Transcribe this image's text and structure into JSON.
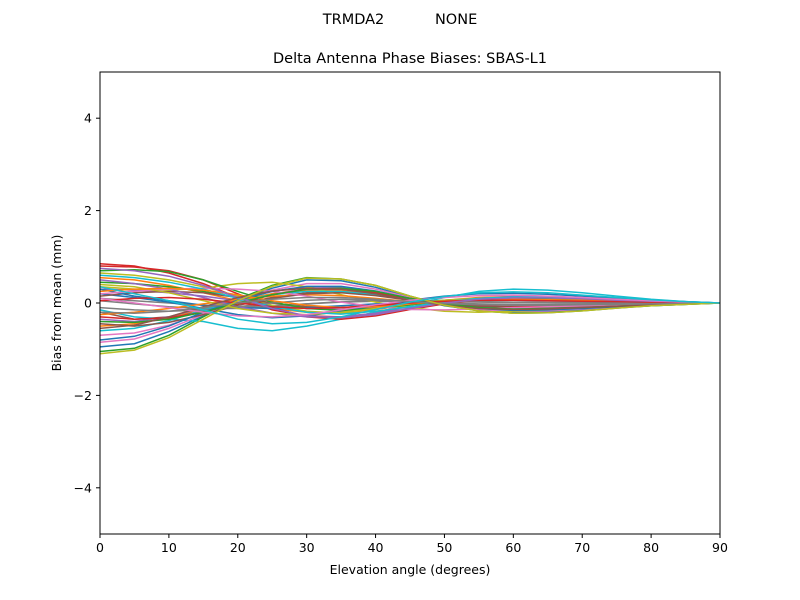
{
  "chart_data": {
    "type": "line",
    "suptitle": "TRMDA2           NONE",
    "title": "Delta Antenna Phase Biases: SBAS-L1",
    "xlabel": "Elevation angle (degrees)",
    "ylabel": "Bias from mean (mm)",
    "xlim": [
      0,
      90
    ],
    "ylim": [
      -5,
      5
    ],
    "xticks": [
      0,
      10,
      20,
      30,
      40,
      50,
      60,
      70,
      80,
      90
    ],
    "yticks": [
      -4,
      -2,
      0,
      2,
      4
    ],
    "ytick_labels": [
      "−4",
      "−2",
      "0",
      "2",
      "4"
    ],
    "grid": false,
    "x": [
      0,
      5,
      10,
      15,
      20,
      25,
      30,
      35,
      40,
      45,
      50,
      55,
      60,
      65,
      70,
      75,
      80,
      85,
      90
    ],
    "series": [
      {
        "color": "#1f77b4",
        "values": [
          -0.95,
          -0.88,
          -0.62,
          -0.28,
          0.05,
          0.32,
          0.5,
          0.48,
          0.34,
          0.12,
          -0.06,
          -0.16,
          -0.2,
          -0.19,
          -0.15,
          -0.1,
          -0.06,
          -0.03,
          0.0
        ]
      },
      {
        "color": "#ff7f0e",
        "values": [
          0.55,
          0.5,
          0.38,
          0.22,
          0.05,
          -0.12,
          -0.2,
          -0.2,
          -0.14,
          -0.04,
          0.06,
          0.12,
          0.14,
          0.13,
          0.1,
          0.07,
          0.04,
          0.02,
          0.0
        ]
      },
      {
        "color": "#2ca02c",
        "values": [
          -1.05,
          -0.98,
          -0.7,
          -0.3,
          0.08,
          0.38,
          0.55,
          0.52,
          0.38,
          0.15,
          -0.05,
          -0.17,
          -0.22,
          -0.21,
          -0.17,
          -0.11,
          -0.06,
          -0.03,
          0.0
        ]
      },
      {
        "color": "#d62728",
        "values": [
          0.85,
          0.8,
          0.65,
          0.42,
          0.12,
          -0.15,
          -0.28,
          -0.3,
          -0.22,
          -0.1,
          0.02,
          0.1,
          0.13,
          0.12,
          0.1,
          0.07,
          0.04,
          0.02,
          0.0
        ]
      },
      {
        "color": "#9467bd",
        "values": [
          0.3,
          0.28,
          0.22,
          0.15,
          0.05,
          -0.05,
          -0.12,
          -0.14,
          -0.1,
          -0.04,
          0.03,
          0.07,
          0.09,
          0.08,
          0.06,
          0.04,
          0.02,
          0.01,
          0.0
        ]
      },
      {
        "color": "#8c564b",
        "values": [
          -0.2,
          -0.35,
          -0.3,
          -0.18,
          -0.02,
          0.12,
          0.22,
          0.24,
          0.18,
          0.06,
          -0.04,
          -0.1,
          -0.12,
          -0.11,
          -0.09,
          -0.06,
          -0.03,
          -0.01,
          0.0
        ]
      },
      {
        "color": "#e377c2",
        "values": [
          -0.7,
          -0.65,
          -0.48,
          -0.22,
          0.03,
          0.2,
          0.3,
          0.3,
          0.22,
          0.08,
          -0.04,
          -0.12,
          -0.15,
          -0.14,
          -0.11,
          -0.08,
          -0.05,
          -0.02,
          0.0
        ]
      },
      {
        "color": "#7f7f7f",
        "values": [
          0.1,
          0.05,
          0.0,
          -0.05,
          -0.08,
          -0.06,
          -0.02,
          0.02,
          0.04,
          0.04,
          0.03,
          0.02,
          0.01,
          0.01,
          0.01,
          0.0,
          0.0,
          0.0,
          0.0
        ]
      },
      {
        "color": "#bcbd22",
        "values": [
          0.65,
          0.6,
          0.5,
          0.35,
          0.15,
          -0.05,
          -0.18,
          -0.22,
          -0.18,
          -0.08,
          0.03,
          0.1,
          0.12,
          0.11,
          0.09,
          0.06,
          0.04,
          0.02,
          0.0
        ]
      },
      {
        "color": "#17becf",
        "values": [
          -0.15,
          -0.3,
          -0.35,
          -0.4,
          -0.55,
          -0.6,
          -0.5,
          -0.35,
          -0.2,
          -0.05,
          0.12,
          0.25,
          0.3,
          0.28,
          0.22,
          0.15,
          0.08,
          0.03,
          0.0
        ]
      },
      {
        "color": "#1f77b4",
        "values": [
          0.2,
          0.12,
          0.02,
          -0.12,
          -0.25,
          -0.32,
          -0.28,
          -0.18,
          -0.06,
          0.06,
          0.15,
          0.2,
          0.21,
          0.19,
          0.15,
          0.1,
          0.06,
          0.03,
          0.0
        ]
      },
      {
        "color": "#ff7f0e",
        "values": [
          -0.5,
          -0.45,
          -0.32,
          -0.12,
          0.06,
          0.2,
          0.28,
          0.28,
          0.2,
          0.08,
          -0.02,
          -0.08,
          -0.1,
          -0.1,
          -0.08,
          -0.05,
          -0.03,
          -0.01,
          0.0
        ]
      },
      {
        "color": "#2ca02c",
        "values": [
          0.45,
          0.42,
          0.35,
          0.25,
          0.12,
          0.0,
          -0.08,
          -0.1,
          -0.06,
          0.0,
          0.06,
          0.1,
          0.11,
          0.1,
          0.08,
          0.05,
          0.03,
          0.01,
          0.0
        ]
      },
      {
        "color": "#d62728",
        "values": [
          0.8,
          0.78,
          0.7,
          0.5,
          0.2,
          -0.1,
          -0.3,
          -0.35,
          -0.28,
          -0.14,
          -0.02,
          0.06,
          0.1,
          0.1,
          0.08,
          0.06,
          0.04,
          0.02,
          0.0
        ]
      },
      {
        "color": "#9467bd",
        "values": [
          -0.35,
          -0.4,
          -0.3,
          -0.1,
          0.1,
          0.25,
          0.35,
          0.33,
          0.24,
          0.1,
          -0.02,
          -0.1,
          -0.13,
          -0.12,
          -0.1,
          -0.07,
          -0.04,
          -0.02,
          0.0
        ]
      },
      {
        "color": "#8c564b",
        "values": [
          0.15,
          0.22,
          0.25,
          0.22,
          0.12,
          0.0,
          -0.08,
          -0.1,
          -0.06,
          0.0,
          0.05,
          0.07,
          0.07,
          0.06,
          0.05,
          0.03,
          0.02,
          0.01,
          0.0
        ]
      },
      {
        "color": "#e377c2",
        "values": [
          -0.85,
          -0.78,
          -0.55,
          -0.25,
          0.05,
          0.28,
          0.42,
          0.42,
          0.3,
          0.12,
          -0.04,
          -0.14,
          -0.18,
          -0.17,
          -0.13,
          -0.09,
          -0.05,
          -0.02,
          0.0
        ]
      },
      {
        "color": "#7f7f7f",
        "values": [
          0.05,
          -0.02,
          -0.08,
          -0.12,
          -0.12,
          -0.08,
          -0.02,
          0.03,
          0.05,
          0.05,
          0.04,
          0.03,
          0.02,
          0.01,
          0.01,
          0.0,
          0.0,
          0.0,
          0.0
        ]
      },
      {
        "color": "#bcbd22",
        "values": [
          0.35,
          0.3,
          0.28,
          0.32,
          0.42,
          0.45,
          0.35,
          0.18,
          0.02,
          -0.1,
          -0.18,
          -0.2,
          -0.18,
          -0.15,
          -0.11,
          -0.07,
          -0.04,
          -0.02,
          0.0
        ]
      },
      {
        "color": "#17becf",
        "values": [
          -0.6,
          -0.55,
          -0.38,
          -0.15,
          0.05,
          0.18,
          0.25,
          0.25,
          0.18,
          0.07,
          -0.03,
          -0.09,
          -0.11,
          -0.11,
          -0.09,
          -0.06,
          -0.03,
          -0.01,
          0.0
        ]
      },
      {
        "color": "#1f77b4",
        "values": [
          0.3,
          0.15,
          0.05,
          -0.05,
          -0.1,
          -0.12,
          -0.1,
          -0.06,
          -0.02,
          0.02,
          0.05,
          0.06,
          0.06,
          0.05,
          0.04,
          0.03,
          0.02,
          0.01,
          0.0
        ]
      },
      {
        "color": "#ff7f0e",
        "values": [
          -0.25,
          -0.2,
          -0.12,
          -0.02,
          0.08,
          0.15,
          0.18,
          0.16,
          0.1,
          0.03,
          -0.03,
          -0.07,
          -0.08,
          -0.07,
          -0.06,
          -0.04,
          -0.02,
          -0.01,
          0.0
        ]
      },
      {
        "color": "#2ca02c",
        "values": [
          0.7,
          0.72,
          0.68,
          0.5,
          0.25,
          0.02,
          -0.12,
          -0.16,
          -0.12,
          -0.04,
          0.04,
          0.09,
          0.11,
          0.1,
          0.08,
          0.06,
          0.04,
          0.02,
          0.0
        ]
      },
      {
        "color": "#d62728",
        "values": [
          -0.3,
          -0.35,
          -0.32,
          -0.2,
          -0.02,
          0.18,
          0.3,
          0.3,
          0.22,
          0.1,
          0.0,
          -0.06,
          -0.08,
          -0.08,
          -0.07,
          -0.05,
          -0.03,
          -0.01,
          0.0
        ]
      },
      {
        "color": "#9467bd",
        "values": [
          0.5,
          0.42,
          0.3,
          0.12,
          -0.08,
          -0.22,
          -0.3,
          -0.3,
          -0.22,
          -0.1,
          0.02,
          0.1,
          0.14,
          0.13,
          0.1,
          0.07,
          0.04,
          0.02,
          0.0
        ]
      },
      {
        "color": "#8c564b",
        "values": [
          -0.45,
          -0.5,
          -0.42,
          -0.25,
          -0.05,
          0.1,
          0.2,
          0.22,
          0.16,
          0.06,
          -0.02,
          -0.07,
          -0.09,
          -0.09,
          -0.07,
          -0.05,
          -0.03,
          -0.01,
          0.0
        ]
      },
      {
        "color": "#e377c2",
        "values": [
          0.2,
          0.25,
          0.3,
          0.32,
          0.3,
          0.25,
          0.15,
          0.02,
          -0.08,
          -0.14,
          -0.15,
          -0.13,
          -0.1,
          -0.08,
          -0.06,
          -0.04,
          -0.02,
          -0.01,
          0.0
        ]
      },
      {
        "color": "#7f7f7f",
        "values": [
          -0.1,
          -0.15,
          -0.18,
          -0.15,
          -0.08,
          0.0,
          0.06,
          0.08,
          0.06,
          0.03,
          0.0,
          -0.02,
          -0.03,
          -0.03,
          -0.02,
          -0.02,
          -0.01,
          0.0,
          0.0
        ]
      },
      {
        "color": "#bcbd22",
        "values": [
          0.4,
          0.35,
          0.22,
          0.05,
          -0.12,
          -0.22,
          -0.25,
          -0.2,
          -0.12,
          -0.02,
          0.06,
          0.1,
          0.12,
          0.11,
          0.09,
          0.06,
          0.04,
          0.02,
          0.0
        ]
      },
      {
        "color": "#17becf",
        "values": [
          0.6,
          0.55,
          0.45,
          0.3,
          0.1,
          -0.08,
          -0.2,
          -0.24,
          -0.18,
          -0.08,
          0.03,
          0.1,
          0.13,
          0.12,
          0.1,
          0.07,
          0.04,
          0.02,
          0.0
        ]
      },
      {
        "color": "#1f77b4",
        "values": [
          -0.8,
          -0.72,
          -0.5,
          -0.2,
          0.06,
          0.25,
          0.36,
          0.36,
          0.26,
          0.1,
          -0.03,
          -0.12,
          -0.16,
          -0.15,
          -0.12,
          -0.08,
          -0.05,
          -0.02,
          0.0
        ]
      },
      {
        "color": "#ff7f0e",
        "values": [
          0.25,
          0.3,
          0.32,
          0.28,
          0.18,
          0.05,
          -0.05,
          -0.1,
          -0.08,
          -0.02,
          0.04,
          0.07,
          0.08,
          0.07,
          0.06,
          0.04,
          0.02,
          0.01,
          0.0
        ]
      },
      {
        "color": "#2ca02c",
        "values": [
          -0.4,
          -0.42,
          -0.35,
          -0.2,
          0.0,
          0.18,
          0.3,
          0.32,
          0.25,
          0.1,
          -0.02,
          -0.1,
          -0.13,
          -0.12,
          -0.1,
          -0.07,
          -0.04,
          -0.02,
          0.0
        ]
      },
      {
        "color": "#d62728",
        "values": [
          0.05,
          0.1,
          0.12,
          0.08,
          0.0,
          -0.08,
          -0.12,
          -0.1,
          -0.05,
          0.0,
          0.04,
          0.06,
          0.06,
          0.05,
          0.04,
          0.03,
          0.02,
          0.01,
          0.0
        ]
      },
      {
        "color": "#9467bd",
        "values": [
          0.75,
          0.7,
          0.58,
          0.38,
          0.12,
          -0.12,
          -0.28,
          -0.32,
          -0.25,
          -0.12,
          0.0,
          0.08,
          0.11,
          0.11,
          0.09,
          0.06,
          0.04,
          0.02,
          0.0
        ]
      },
      {
        "color": "#8c564b",
        "values": [
          -0.55,
          -0.48,
          -0.3,
          -0.08,
          0.12,
          0.26,
          0.32,
          0.3,
          0.2,
          0.06,
          -0.05,
          -0.12,
          -0.14,
          -0.13,
          -0.1,
          -0.07,
          -0.04,
          -0.02,
          0.0
        ]
      },
      {
        "color": "#e377c2",
        "values": [
          0.1,
          0.0,
          -0.1,
          -0.2,
          -0.28,
          -0.3,
          -0.25,
          -0.15,
          -0.04,
          0.06,
          0.12,
          0.16,
          0.17,
          0.15,
          0.12,
          0.08,
          0.05,
          0.02,
          0.0
        ]
      },
      {
        "color": "#7f7f7f",
        "values": [
          -0.2,
          -0.22,
          -0.18,
          -0.1,
          0.0,
          0.08,
          0.12,
          0.12,
          0.08,
          0.03,
          -0.01,
          -0.04,
          -0.05,
          -0.05,
          -0.04,
          -0.03,
          -0.02,
          -0.01,
          0.0
        ]
      },
      {
        "color": "#bcbd22",
        "values": [
          -1.1,
          -1.02,
          -0.75,
          -0.35,
          0.05,
          0.36,
          0.54,
          0.52,
          0.38,
          0.15,
          -0.05,
          -0.17,
          -0.22,
          -0.21,
          -0.17,
          -0.11,
          -0.06,
          -0.03,
          0.0
        ]
      },
      {
        "color": "#17becf",
        "values": [
          0.35,
          0.2,
          0.05,
          -0.15,
          -0.35,
          -0.45,
          -0.42,
          -0.3,
          -0.14,
          0.02,
          0.14,
          0.22,
          0.24,
          0.22,
          0.17,
          0.12,
          0.07,
          0.03,
          0.0
        ]
      }
    ]
  }
}
